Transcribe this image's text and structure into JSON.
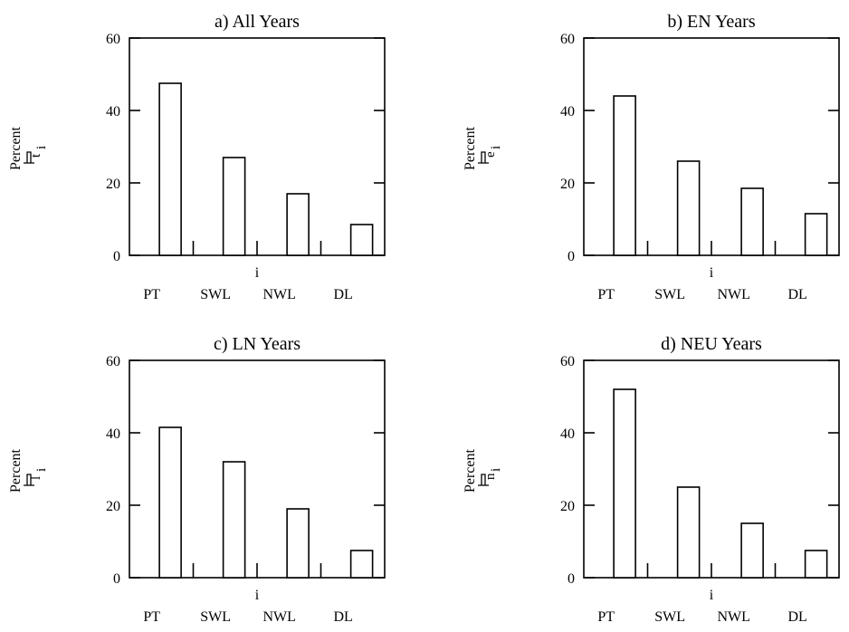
{
  "chart_data": [
    {
      "type": "bar",
      "title": "a) All Years",
      "ylabel": "Percent",
      "symbol": "t",
      "index_label": "i",
      "xlabel": "i",
      "categories": [
        "PT",
        "SWL",
        "NWL",
        "DL"
      ],
      "values": [
        47.5,
        27,
        17,
        8.5
      ],
      "ylim": [
        0,
        60
      ],
      "yticks": [
        "0",
        "20",
        "40",
        "60"
      ],
      "grid": false
    },
    {
      "type": "bar",
      "title": "b) EN Years",
      "ylabel": "Percent",
      "symbol": "e",
      "index_label": "i",
      "xlabel": "i",
      "categories": [
        "PT",
        "SWL",
        "NWL",
        "DL"
      ],
      "values": [
        44,
        26,
        18.5,
        11.5
      ],
      "ylim": [
        0,
        60
      ],
      "yticks": [
        "0",
        "20",
        "40",
        "60"
      ],
      "grid": false
    },
    {
      "type": "bar",
      "title": "c) LN Years",
      "ylabel": "Percent",
      "symbol": "l",
      "index_label": "i",
      "xlabel": "i",
      "categories": [
        "PT",
        "SWL",
        "NWL",
        "DL"
      ],
      "values": [
        41.5,
        32,
        19,
        7.5
      ],
      "ylim": [
        0,
        60
      ],
      "yticks": [
        "0",
        "20",
        "40",
        "60"
      ],
      "grid": false
    },
    {
      "type": "bar",
      "title": "d) NEU Years",
      "ylabel": "Percent",
      "symbol": "n",
      "index_label": "i",
      "xlabel": "i",
      "categories": [
        "PT",
        "SWL",
        "NWL",
        "DL"
      ],
      "values": [
        52,
        25,
        15,
        7.5
      ],
      "ylim": [
        0,
        60
      ],
      "yticks": [
        "0",
        "20",
        "40",
        "60"
      ],
      "grid": false
    }
  ]
}
